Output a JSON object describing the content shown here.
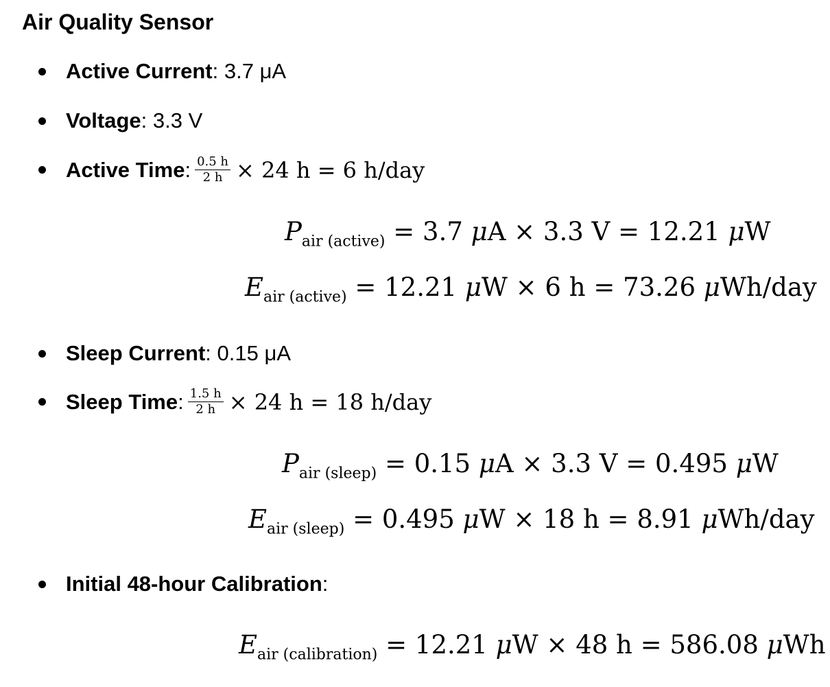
{
  "title": "Air Quality Sensor",
  "items": {
    "active_current": {
      "label": "Active Current",
      "sep": ":",
      "value": "3.7 μA"
    },
    "voltage": {
      "label": "Voltage",
      "sep": ":",
      "value": "3.3 V"
    },
    "active_time": {
      "label": "Active Time",
      "sep": ":",
      "num": "0.5 h",
      "den": "2 h",
      "rest": "× 24 h = 6 h/day"
    },
    "sleep_current": {
      "label": "Sleep Current",
      "sep": ":",
      "value": "0.15 μA"
    },
    "sleep_time": {
      "label": "Sleep Time",
      "sep": ":",
      "num": "1.5 h",
      "den": "2 h",
      "rest": "× 24 h = 18 h/day"
    },
    "calibration": {
      "label": "Initial 48-hour Calibration",
      "sep": ":"
    }
  },
  "equations": {
    "p_active": {
      "var": "P",
      "sub": "air (active)",
      "rhs1": "= 3.7 ",
      "u1": "μ",
      "rest1": "A × 3.3 V = 12.21 ",
      "u2": "μ",
      "rest2": "W"
    },
    "e_active": {
      "var": "E",
      "sub": "air (active)",
      "rhs1": "= 12.21 ",
      "u1": "μ",
      "rest1": "W × 6 h = 73.26 ",
      "u2": "μ",
      "rest2": "Wh/day"
    },
    "p_sleep": {
      "var": "P",
      "sub": "air (sleep)",
      "rhs1": "= 0.15 ",
      "u1": "μ",
      "rest1": "A × 3.3 V = 0.495 ",
      "u2": "μ",
      "rest2": "W"
    },
    "e_sleep": {
      "var": "E",
      "sub": "air (sleep)",
      "rhs1": "= 0.495 ",
      "u1": "μ",
      "rest1": "W × 18 h = 8.91 ",
      "u2": "μ",
      "rest2": "Wh/day"
    },
    "e_calibration": {
      "var": "E",
      "sub": "air (calibration)",
      "rhs1": "= 12.21 ",
      "u1": "μ",
      "rest1": "W × 48 h = 586.08 ",
      "u2": "μ",
      "rest2": "Wh"
    }
  }
}
